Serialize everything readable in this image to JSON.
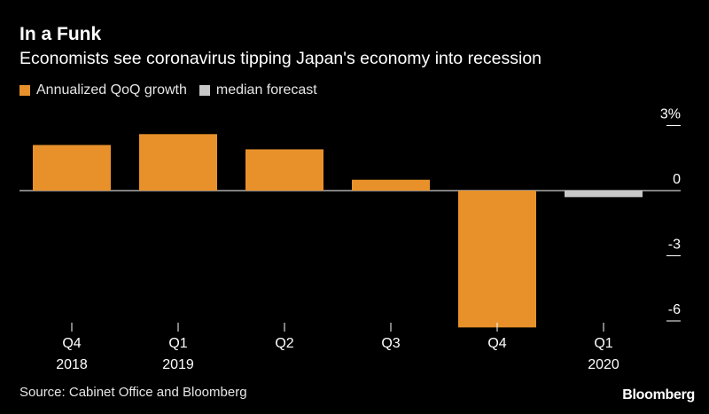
{
  "title": "In a Funk",
  "subtitle": "Economists see coronavirus tipping Japan's economy into recession",
  "legend": [
    {
      "label": "Annualized QoQ growth",
      "color": "#e8912a"
    },
    {
      "label": "median forecast",
      "color": "#c8c8c8"
    }
  ],
  "source": "Source: Cabinet Office and Bloomberg",
  "brand": "Bloomberg",
  "chart_data": {
    "type": "bar",
    "title": "In a Funk",
    "subtitle": "Economists see coronavirus tipping Japan's economy into recession",
    "xlabel": "",
    "ylabel": "",
    "ylim": [
      -6.5,
      3
    ],
    "yticks": [
      3,
      0,
      -3,
      -6
    ],
    "ytick_labels": [
      "3%",
      "0",
      "-3",
      "-6"
    ],
    "y_axis_side": "right",
    "categories": [
      {
        "line1": "Q4",
        "line2": "2018"
      },
      {
        "line1": "Q1",
        "line2": "2019"
      },
      {
        "line1": "Q2",
        "line2": ""
      },
      {
        "line1": "Q3",
        "line2": ""
      },
      {
        "line1": "Q4",
        "line2": ""
      },
      {
        "line1": "Q1",
        "line2": "2020"
      }
    ],
    "series": [
      {
        "name": "Annualized QoQ growth",
        "color": "#e8912a",
        "values": [
          2.1,
          2.6,
          1.9,
          0.5,
          -6.3,
          null
        ]
      },
      {
        "name": "median forecast",
        "color": "#c8c8c8",
        "values": [
          null,
          null,
          null,
          null,
          null,
          -0.3
        ]
      }
    ],
    "grid": false
  }
}
